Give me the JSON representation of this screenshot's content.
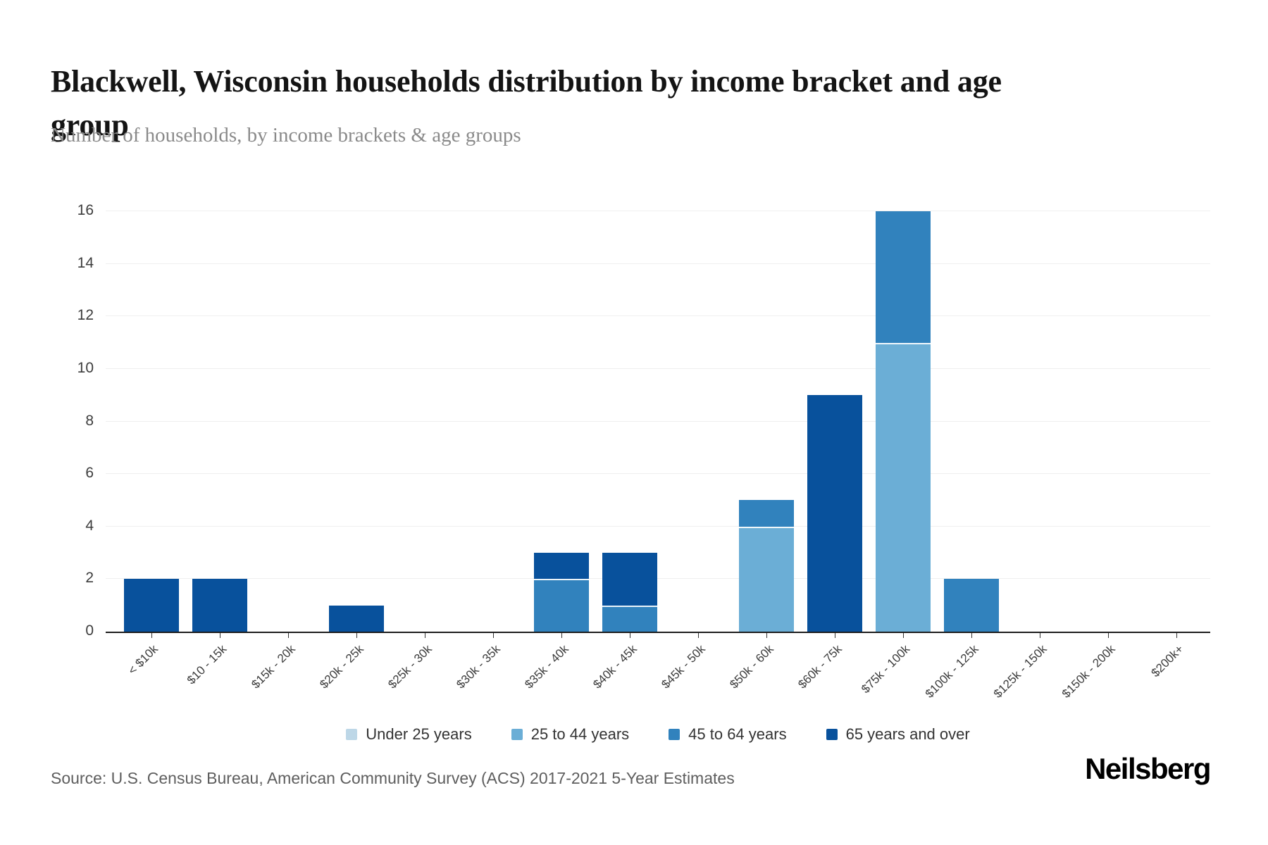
{
  "title": "Blackwell, Wisconsin households distribution by income bracket and age group",
  "subtitle": "Number of households, by income brackets & age groups",
  "source": "Source: U.S. Census Bureau, American Community Survey (ACS) 2017-2021 5-Year Estimates",
  "logo": "Neilsberg",
  "chart_data": {
    "type": "bar",
    "stacked": true,
    "title": "Blackwell, Wisconsin households distribution by income bracket and age group",
    "subtitle": "Number of households, by income brackets & age groups",
    "xlabel": "",
    "ylabel": "Number of households",
    "ylim": [
      0,
      16
    ],
    "ytick_step": 2,
    "grid": "horizontal",
    "legend_position": "bottom",
    "categories": [
      "< $10k",
      "$10 - 15k",
      "$15k - 20k",
      "$20k - 25k",
      "$25k - 30k",
      "$30k - 35k",
      "$35k - 40k",
      "$40k - 45k",
      "$45k - 50k",
      "$50k - 60k",
      "$60k - 75k",
      "$75k - 100k",
      "$100k - 125k",
      "$125k - 150k",
      "$150k - 200k",
      "$200k+"
    ],
    "series": [
      {
        "name": "Under 25 years",
        "color": "#bdd7e7",
        "values": [
          0,
          0,
          0,
          0,
          0,
          0,
          0,
          0,
          0,
          0,
          0,
          0,
          0,
          0,
          0,
          0
        ]
      },
      {
        "name": "25 to 44 years",
        "color": "#6baed6",
        "values": [
          0,
          0,
          0,
          0,
          0,
          0,
          0,
          0,
          0,
          4,
          0,
          11,
          0,
          0,
          0,
          0
        ]
      },
      {
        "name": "45 to 64 years",
        "color": "#3182bd",
        "values": [
          0,
          0,
          0,
          0,
          0,
          0,
          2,
          1,
          0,
          1,
          0,
          5,
          2,
          0,
          0,
          0
        ]
      },
      {
        "name": "65 years and over",
        "color": "#08519c",
        "values": [
          2,
          2,
          0,
          1,
          0,
          0,
          1,
          2,
          0,
          0,
          9,
          0,
          0,
          0,
          0,
          0
        ]
      }
    ],
    "totals": [
      2,
      2,
      0,
      1,
      0,
      0,
      3,
      3,
      0,
      5,
      9,
      16,
      2,
      0,
      0,
      0
    ]
  }
}
